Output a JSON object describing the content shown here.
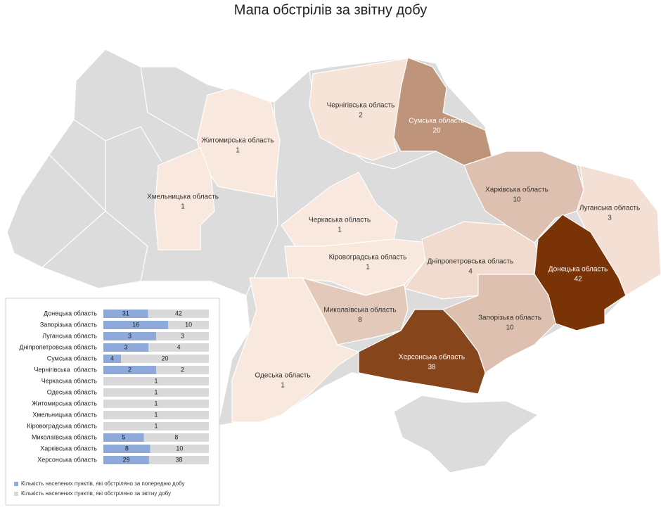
{
  "title": "Мапа обстрілів за звітну добу",
  "map": {
    "color_scale": [
      "#f9e8de",
      "#7a3306"
    ],
    "dark_text_above": 15,
    "regions": [
      {
        "name": "Чернігівська область",
        "value": 2
      },
      {
        "name": "Сумська область",
        "value": 20
      },
      {
        "name": "Житомирська область",
        "value": 1
      },
      {
        "name": "Хмельницька область",
        "value": 1
      },
      {
        "name": "Черкаська область",
        "value": 1
      },
      {
        "name": "Кіровоградська область",
        "value": 1
      },
      {
        "name": "Дніпропетровська область",
        "value": 4
      },
      {
        "name": "Харківська область",
        "value": 10
      },
      {
        "name": "Луганська область",
        "value": 3
      },
      {
        "name": "Донецька область",
        "value": 42
      },
      {
        "name": "Запорізька область",
        "value": 10
      },
      {
        "name": "Миколаївська область",
        "value": 8
      },
      {
        "name": "Херсонська область",
        "value": 38
      },
      {
        "name": "Одеська область",
        "value": 1
      }
    ]
  },
  "chart_data": {
    "type": "bar",
    "orientation": "horizontal",
    "stacking": "percent",
    "categories": [
      "Донецька область",
      "Запорізька область",
      "Луганська область",
      "Дніпропетровська область",
      "Сумська область",
      "Чернігівська  область",
      "Черкаська область",
      "Одеська область",
      "Житомирська область",
      "Хмельницька область",
      "Кіровоградська область",
      "Миколаївська область",
      "Харківська область",
      "Херсонська область"
    ],
    "series": [
      {
        "name": "Кількість населених пунктів, які обстріляно за попередню добу",
        "color": "#8eaadb",
        "values": [
          31,
          16,
          3,
          3,
          4,
          2,
          null,
          null,
          null,
          null,
          null,
          5,
          8,
          29
        ]
      },
      {
        "name": "Кількість населених пунктів, які обстріляно за звітну добу",
        "color": "#d9d9d9",
        "values": [
          42,
          10,
          3,
          4,
          20,
          2,
          1,
          1,
          1,
          1,
          1,
          8,
          10,
          38
        ]
      }
    ]
  }
}
